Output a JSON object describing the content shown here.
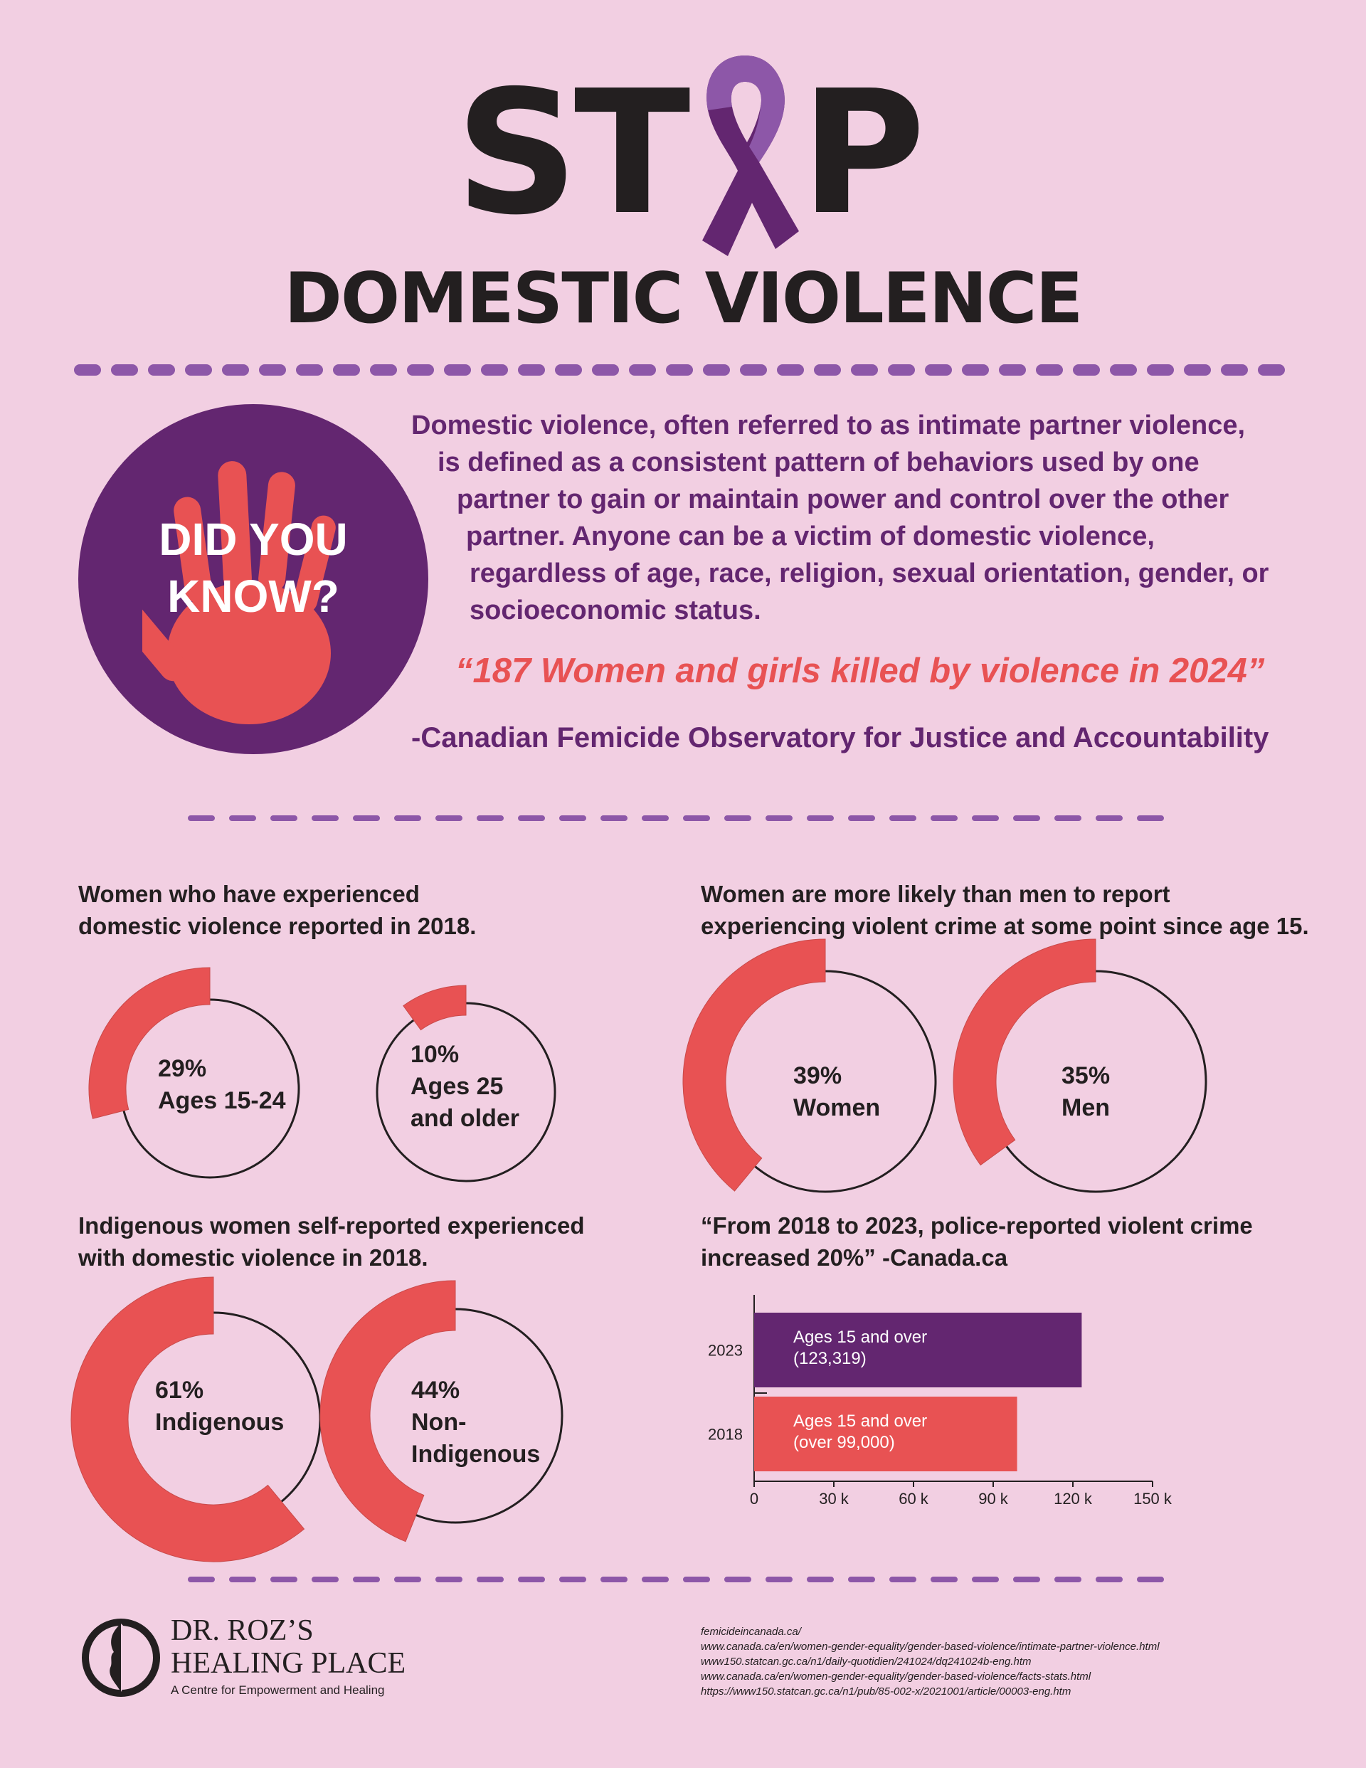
{
  "title": {
    "stop_left": "ST",
    "stop_right": "P",
    "subtitle": "DOMESTIC VIOLENCE"
  },
  "colors": {
    "background": "#f2cfe2",
    "purple": "#632670",
    "coral": "#e85253",
    "dark": "#231f20",
    "ribbon_light": "#8d57a8"
  },
  "intro": {
    "badge_line1": "DID YOU",
    "badge_line2": "KNOW?",
    "badge_icon": "handprint-icon",
    "description": [
      "Domestic violence, often referred to as intimate partner violence,",
      "is defined as a consistent pattern of behaviors used by one",
      "partner to gain or maintain power and control over the other",
      "partner. Anyone can be a victim of domestic violence,",
      "regardless of age, race, religion, sexual orientation, gender, or",
      "socioeconomic status."
    ],
    "quote": "“187 Women and girls killed by violence in 2024”",
    "quote_source": "-Canadian Femicide Observatory for Justice and Accountability"
  },
  "sections": {
    "women_2018": {
      "heading": [
        "Women who have experienced",
        "domestic violence reported in 2018."
      ],
      "stats": [
        {
          "value": 29,
          "pct": "29%",
          "label": [
            "Ages 15-24"
          ]
        },
        {
          "value": 10,
          "pct": "10%",
          "label": [
            "Ages 25",
            "and older"
          ]
        }
      ]
    },
    "women_men": {
      "heading": [
        "Women are more likely than men to report",
        "experiencing violent crime at some point since age 15."
      ],
      "stats": [
        {
          "value": 39,
          "pct": "39%",
          "label": [
            "Women"
          ]
        },
        {
          "value": 35,
          "pct": "35%",
          "label": [
            "Men"
          ]
        }
      ]
    },
    "indigenous": {
      "heading": [
        "Indigenous women self-reported experienced",
        "with domestic violence in 2018."
      ],
      "stats": [
        {
          "value": 61,
          "pct": "61%",
          "label": [
            "Indigenous"
          ]
        },
        {
          "value": 44,
          "pct": "44%",
          "label": [
            "Non-",
            "Indigenous"
          ]
        }
      ]
    },
    "police": {
      "heading": [
        "“From 2018 to 2023, police-reported violent crime",
        "increased 20%” -Canada.ca"
      ]
    }
  },
  "chart_data": {
    "type": "bar",
    "orientation": "horizontal",
    "categories": [
      "2023",
      "2018"
    ],
    "values": [
      123319,
      99000
    ],
    "bar_labels": [
      [
        "Ages 15 and over",
        "(123,319)"
      ],
      [
        "Ages 15 and over",
        "(over 99,000)"
      ]
    ],
    "bar_colors": [
      "#632670",
      "#e85253"
    ],
    "xlim": [
      0,
      150000
    ],
    "xticks": [
      "0",
      "30 k",
      "60 k",
      "90 k",
      "120 k",
      "150 k"
    ],
    "title": "",
    "xlabel": "",
    "ylabel": ""
  },
  "footer": {
    "logo_line1": "DR. ROZ’S",
    "logo_line2": "HEALING PLACE",
    "logo_tagline": "A Centre for Empowerment and Healing",
    "references": [
      "femicideincanada.ca/",
      "www.canada.ca/en/women-gender-equality/gender-based-violence/intimate-partner-violence.html",
      "www150.statcan.gc.ca/n1/daily-quotidien/241024/dq241024b-eng.htm",
      "www.canada.ca/en/women-gender-equality/gender-based-violence/facts-stats.html",
      "https://www150.statcan.gc.ca/n1/pub/85-002-x/2021001/article/00003-eng.htm"
    ]
  }
}
